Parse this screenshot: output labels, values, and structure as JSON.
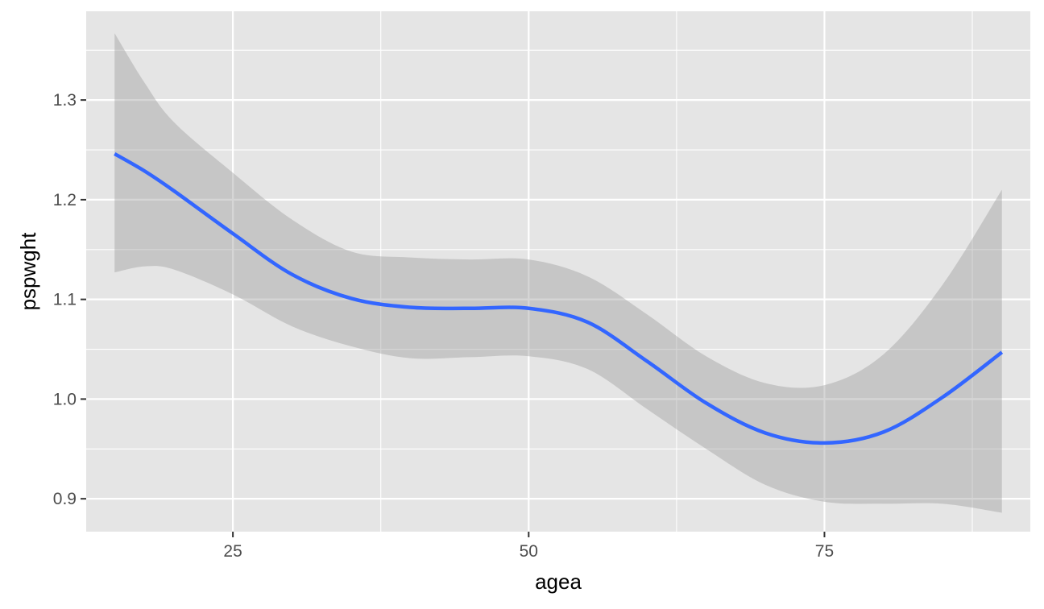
{
  "chart_data": {
    "type": "line",
    "title": "",
    "xlabel": "agea",
    "ylabel": "pspwght",
    "xlim": [
      12.6,
      92.4
    ],
    "ylim": [
      0.867,
      1.389
    ],
    "x_breaks_major": [
      25,
      50,
      75
    ],
    "x_breaks_minor": [
      12.5,
      37.5,
      62.5,
      87.5
    ],
    "y_breaks_major": [
      0.9,
      1.0,
      1.1,
      1.2,
      1.3
    ],
    "y_breaks_minor": [
      0.95,
      1.05,
      1.15,
      1.25,
      1.35
    ],
    "x_tick_labels": [
      "25",
      "50",
      "75"
    ],
    "y_tick_labels": [
      "0.9",
      "1.0",
      "1.1",
      "1.2",
      "1.3"
    ],
    "grid": true,
    "legend": "none",
    "colors": {
      "line": "#3366ff",
      "ribbon": "#999999",
      "panel": "#e5e5e5",
      "grid": "#ffffff"
    },
    "series": [
      {
        "x": [
          15,
          17.5,
          20,
          25,
          30,
          35,
          40,
          45,
          50,
          55,
          60,
          65,
          70,
          75,
          80,
          85,
          90
        ],
        "y": [
          1.246,
          1.229,
          1.209,
          1.166,
          1.125,
          1.101,
          1.092,
          1.091,
          1.091,
          1.077,
          1.038,
          0.996,
          0.966,
          0.956,
          0.967,
          1.002,
          1.047
        ],
        "ymin": [
          1.127,
          1.133,
          1.13,
          1.105,
          1.073,
          1.053,
          1.041,
          1.042,
          1.043,
          1.03,
          0.99,
          0.95,
          0.914,
          0.897,
          0.895,
          0.895,
          0.886
        ],
        "ymax": [
          1.367,
          1.318,
          1.278,
          1.227,
          1.18,
          1.148,
          1.142,
          1.14,
          1.14,
          1.123,
          1.085,
          1.043,
          1.016,
          1.014,
          1.045,
          1.115,
          1.21
        ]
      }
    ]
  }
}
